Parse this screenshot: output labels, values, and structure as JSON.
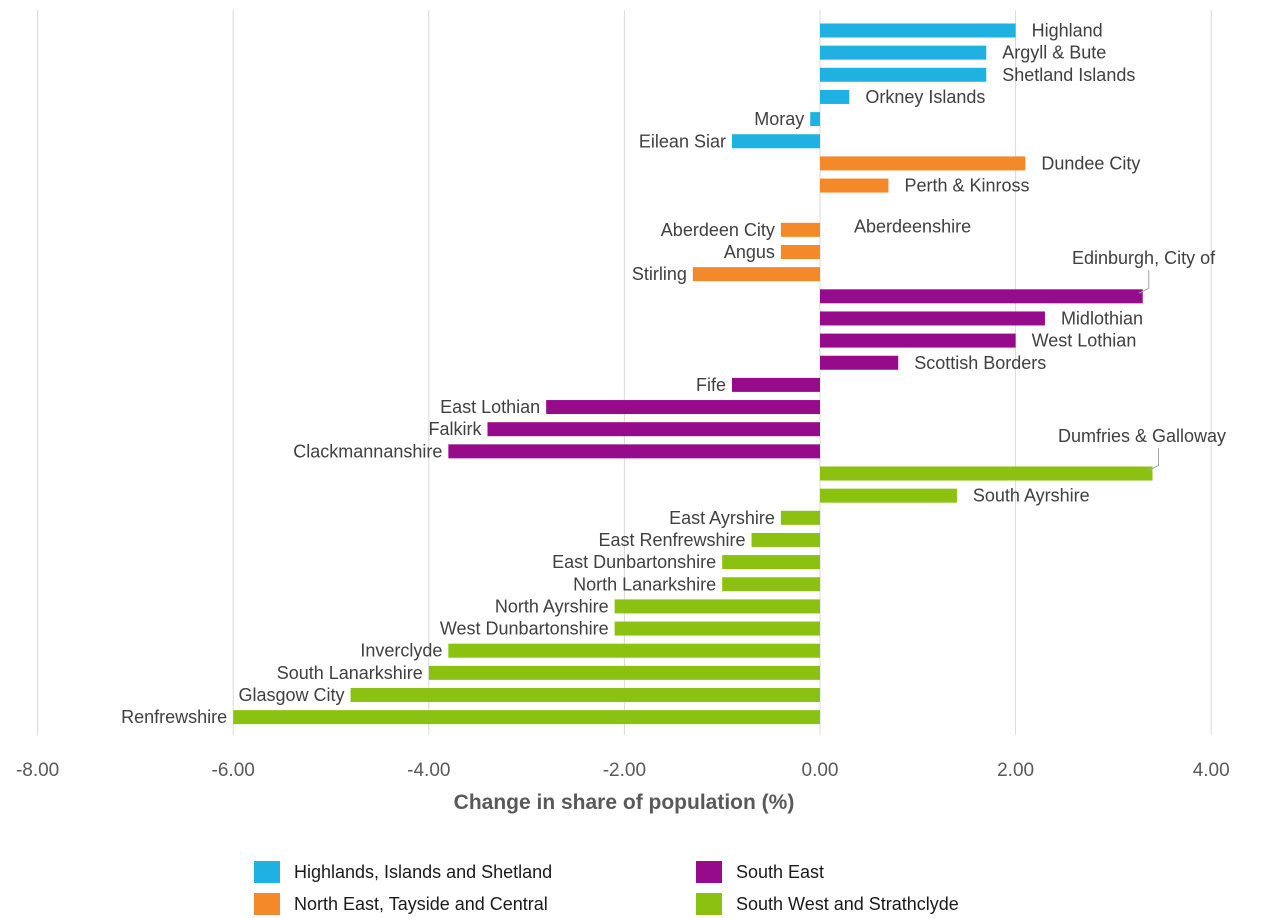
{
  "chart_data": {
    "type": "bar",
    "orientation": "horizontal",
    "title": "",
    "xlabel": "Change in share of population (%)",
    "ylabel": "",
    "xlim": [
      -8,
      4
    ],
    "xticks": [
      -8,
      -6,
      -4,
      -2,
      0,
      2,
      4
    ],
    "xtick_labels": [
      "-8.00",
      "-6.00",
      "-4.00",
      "-2.00",
      "0.00",
      "2.00",
      "4.00"
    ],
    "grid": "vertical",
    "legend_position": "bottom",
    "groups": [
      {
        "name": "Highlands, Islands and Shetland",
        "color": "#1fb1e2"
      },
      {
        "name": "North East, Tayside and Central",
        "color": "#f4892a"
      },
      {
        "name": "South East",
        "color": "#960b8b"
      },
      {
        "name": "South West and Strathclyde",
        "color": "#8bc111"
      }
    ],
    "bars": [
      {
        "label": "Highland",
        "value": 2.0,
        "group": 0
      },
      {
        "label": "Argyll & Bute",
        "value": 1.7,
        "group": 0
      },
      {
        "label": "Shetland Islands",
        "value": 1.7,
        "group": 0
      },
      {
        "label": "Orkney Islands",
        "value": 0.3,
        "group": 0
      },
      {
        "label": "Moray",
        "value": -0.1,
        "group": 0
      },
      {
        "label": "Eilean Siar",
        "value": -0.9,
        "group": 0
      },
      {
        "label": "Dundee City",
        "value": 2.1,
        "group": 1
      },
      {
        "label": "Perth & Kinross",
        "value": 0.7,
        "group": 1
      },
      {
        "label": "Aberdeenshire",
        "value": 0.0,
        "group": 1
      },
      {
        "label": "Aberdeen City",
        "value": -0.4,
        "group": 1
      },
      {
        "label": "Angus",
        "value": -0.4,
        "group": 1
      },
      {
        "label": "Stirling",
        "value": -1.3,
        "group": 1
      },
      {
        "label": "Edinburgh, City of",
        "value": 3.3,
        "group": 2
      },
      {
        "label": "Midlothian",
        "value": 2.3,
        "group": 2
      },
      {
        "label": "West Lothian",
        "value": 2.0,
        "group": 2
      },
      {
        "label": "Scottish Borders",
        "value": 0.8,
        "group": 2
      },
      {
        "label": "Fife",
        "value": -0.9,
        "group": 2
      },
      {
        "label": "East Lothian",
        "value": -2.8,
        "group": 2
      },
      {
        "label": "Falkirk",
        "value": -3.4,
        "group": 2
      },
      {
        "label": "Clackmannanshire",
        "value": -3.8,
        "group": 2
      },
      {
        "label": "Dumfries & Galloway",
        "value": 3.4,
        "group": 3
      },
      {
        "label": "South Ayrshire",
        "value": 1.4,
        "group": 3
      },
      {
        "label": "East Ayrshire",
        "value": -0.4,
        "group": 3
      },
      {
        "label": "East Renfrewshire",
        "value": -0.7,
        "group": 3
      },
      {
        "label": "East Dunbartonshire",
        "value": -1.0,
        "group": 3
      },
      {
        "label": "North Lanarkshire",
        "value": -1.0,
        "group": 3
      },
      {
        "label": "North Ayrshire",
        "value": -2.1,
        "group": 3
      },
      {
        "label": "West Dunbartonshire",
        "value": -2.1,
        "group": 3
      },
      {
        "label": "Inverclyde",
        "value": -3.8,
        "group": 3
      },
      {
        "label": "South Lanarkshire",
        "value": -4.0,
        "group": 3
      },
      {
        "label": "Glasgow City",
        "value": -4.8,
        "group": 3
      },
      {
        "label": "Renfrewshire",
        "value": -6.0,
        "group": 3
      }
    ]
  }
}
